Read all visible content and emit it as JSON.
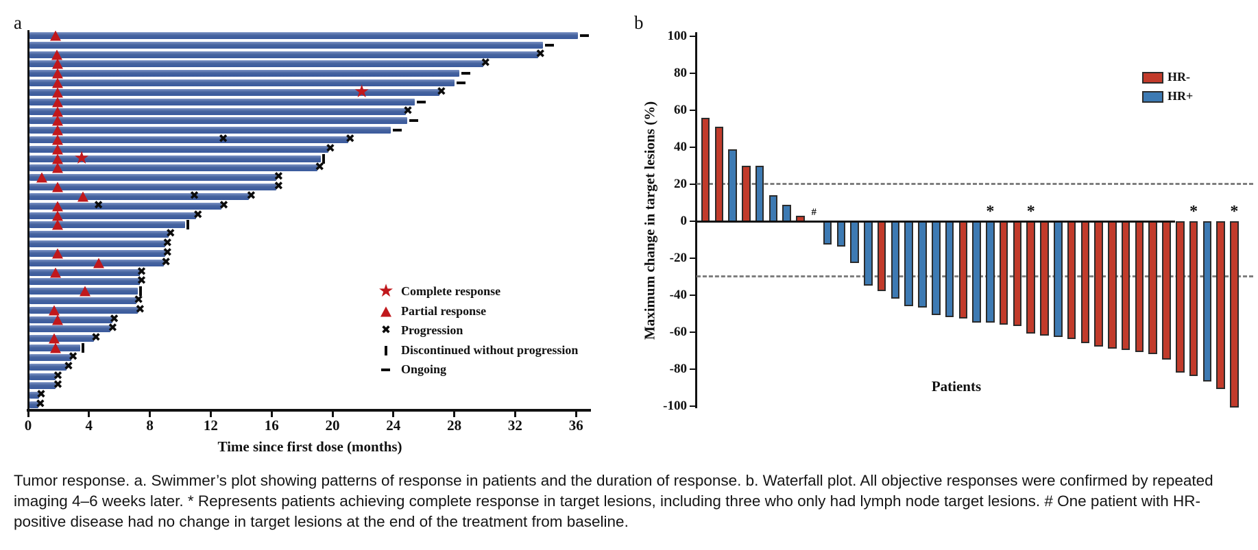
{
  "figure": {
    "panel_a_label": "a",
    "panel_b_label": "b",
    "caption": "Tumor response. a. Swimmer’s plot showing patterns of response in patients and the duration of response. b. Waterfall plot. All objective responses were confirmed by repeated imaging 4–6 weeks later. * Represents patients achieving complete response in target lesions, including three who only had lymph node target lesions. # One patient with HR-positive disease had no change in target lesions at the end of the treatment from baseline."
  },
  "colors": {
    "swimmer_bar": "#3f5fa0",
    "hr_negative": "#c23b2b",
    "hr_positive": "#3d7ab3",
    "marker_red": "#c0181c",
    "marker_black": "#0c0c0c",
    "dashed_reference": "#7e7e7e"
  },
  "chart_data": [
    {
      "type": "bar",
      "subtype": "swimmer",
      "panel": "a",
      "orientation": "horizontal",
      "xlabel": "Time since first dose (months)",
      "xlim": [
        0,
        37
      ],
      "xticks": [
        0,
        4,
        8,
        12,
        16,
        20,
        24,
        28,
        32,
        36
      ],
      "grid": false,
      "legend_position": "center-right",
      "legend": [
        {
          "marker": "star",
          "label": "Complete response"
        },
        {
          "marker": "triangle",
          "label": "Partial response"
        },
        {
          "marker": "x",
          "label": "Progression"
        },
        {
          "marker": "vbar",
          "label": "Discontinued without progression"
        },
        {
          "marker": "dash",
          "label": "Ongoing"
        }
      ],
      "rows": [
        {
          "duration": 36.1,
          "end": "ongoing",
          "markers": [
            {
              "t": "triangle",
              "x": 1.8
            }
          ]
        },
        {
          "duration": 33.8,
          "end": "ongoing",
          "markers": []
        },
        {
          "duration": 33.5,
          "end": "progression",
          "markers": [
            {
              "t": "triangle",
              "x": 1.85
            }
          ]
        },
        {
          "duration": 29.9,
          "end": "progression",
          "markers": [
            {
              "t": "triangle",
              "x": 1.9
            }
          ]
        },
        {
          "duration": 28.3,
          "end": "ongoing",
          "markers": [
            {
              "t": "triangle",
              "x": 1.9
            }
          ]
        },
        {
          "duration": 28.0,
          "end": "ongoing",
          "markers": [
            {
              "t": "triangle",
              "x": 1.9
            }
          ]
        },
        {
          "duration": 27.0,
          "end": "progression",
          "markers": [
            {
              "t": "triangle",
              "x": 1.9
            },
            {
              "t": "star",
              "x": 21.9
            }
          ]
        },
        {
          "duration": 25.4,
          "end": "ongoing",
          "markers": [
            {
              "t": "triangle",
              "x": 1.9
            }
          ]
        },
        {
          "duration": 24.8,
          "end": "progression",
          "markers": [
            {
              "t": "triangle",
              "x": 1.9
            }
          ]
        },
        {
          "duration": 24.9,
          "end": "ongoing",
          "markers": [
            {
              "t": "triangle",
              "x": 1.9
            }
          ]
        },
        {
          "duration": 23.8,
          "end": "ongoing",
          "markers": [
            {
              "t": "triangle",
              "x": 1.9
            }
          ]
        },
        {
          "duration": 21.0,
          "end": "progression",
          "markers": [
            {
              "t": "triangle",
              "x": 1.9
            },
            {
              "t": "x",
              "x": 12.8
            }
          ]
        },
        {
          "duration": 19.7,
          "end": "progression",
          "markers": [
            {
              "t": "triangle",
              "x": 1.9
            }
          ]
        },
        {
          "duration": 19.2,
          "end": "discontinued",
          "markers": [
            {
              "t": "triangle",
              "x": 1.9
            },
            {
              "t": "star",
              "x": 3.5
            }
          ]
        },
        {
          "duration": 19.0,
          "end": "progression",
          "markers": [
            {
              "t": "triangle",
              "x": 1.9
            }
          ]
        },
        {
          "duration": 16.3,
          "end": "progression",
          "markers": [
            {
              "t": "triangle",
              "x": 0.9
            }
          ]
        },
        {
          "duration": 16.3,
          "end": "progression",
          "markers": [
            {
              "t": "triangle",
              "x": 1.9
            }
          ]
        },
        {
          "duration": 14.5,
          "end": "progression",
          "markers": [
            {
              "t": "triangle",
              "x": 3.6
            },
            {
              "t": "x",
              "x": 10.9
            }
          ]
        },
        {
          "duration": 12.7,
          "end": "progression",
          "markers": [
            {
              "t": "triangle",
              "x": 1.9
            },
            {
              "t": "x",
              "x": 4.6
            }
          ]
        },
        {
          "duration": 11.0,
          "end": "progression",
          "markers": [
            {
              "t": "triangle",
              "x": 1.9
            }
          ]
        },
        {
          "duration": 10.3,
          "end": "discontinued",
          "markers": [
            {
              "t": "triangle",
              "x": 1.9
            }
          ]
        },
        {
          "duration": 9.2,
          "end": "progression",
          "markers": []
        },
        {
          "duration": 9.0,
          "end": "progression",
          "markers": []
        },
        {
          "duration": 9.0,
          "end": "progression",
          "markers": [
            {
              "t": "triangle",
              "x": 1.9
            }
          ]
        },
        {
          "duration": 8.9,
          "end": "progression",
          "markers": [
            {
              "t": "triangle",
              "x": 4.6
            }
          ]
        },
        {
          "duration": 7.3,
          "end": "progression",
          "markers": [
            {
              "t": "triangle",
              "x": 1.8
            }
          ]
        },
        {
          "duration": 7.3,
          "end": "progression",
          "markers": []
        },
        {
          "duration": 7.2,
          "end": "discontinued",
          "markers": [
            {
              "t": "triangle",
              "x": 3.7
            }
          ]
        },
        {
          "duration": 7.1,
          "end": "progression",
          "markers": []
        },
        {
          "duration": 7.2,
          "end": "progression",
          "markers": [
            {
              "t": "triangle",
              "x": 1.7
            }
          ]
        },
        {
          "duration": 5.5,
          "end": "progression",
          "markers": [
            {
              "t": "triangle",
              "x": 1.9
            }
          ]
        },
        {
          "duration": 5.4,
          "end": "progression",
          "markers": []
        },
        {
          "duration": 4.3,
          "end": "progression",
          "markers": [
            {
              "t": "triangle",
              "x": 1.7
            }
          ]
        },
        {
          "duration": 3.4,
          "end": "discontinued",
          "markers": [
            {
              "t": "triangle",
              "x": 1.8
            }
          ]
        },
        {
          "duration": 2.8,
          "end": "progression",
          "markers": []
        },
        {
          "duration": 2.5,
          "end": "progression",
          "markers": []
        },
        {
          "duration": 1.8,
          "end": "progression",
          "markers": []
        },
        {
          "duration": 1.8,
          "end": "progression",
          "markers": []
        },
        {
          "duration": 0.7,
          "end": "progression",
          "markers": []
        },
        {
          "duration": 0.65,
          "end": "progression",
          "markers": []
        }
      ]
    },
    {
      "type": "bar",
      "subtype": "waterfall",
      "panel": "b",
      "ylabel": "Maximum change in target lesions (%)",
      "xlabel": "Patients",
      "ylim": [
        -100,
        100
      ],
      "yticks": [
        100,
        80,
        60,
        40,
        20,
        0,
        -20,
        -40,
        -60,
        -80,
        -100
      ],
      "reference_lines": [
        20,
        -30
      ],
      "grid": false,
      "legend_position": "top-right",
      "legend": [
        {
          "label": "HR-",
          "group": "HR-"
        },
        {
          "label": "HR+",
          "group": "HR+"
        }
      ],
      "patients": [
        {
          "value": 56,
          "group": "HR-"
        },
        {
          "value": 51,
          "group": "HR-"
        },
        {
          "value": 39,
          "group": "HR+"
        },
        {
          "value": 30,
          "group": "HR-"
        },
        {
          "value": 30,
          "group": "HR+"
        },
        {
          "value": 14,
          "group": "HR+"
        },
        {
          "value": 9,
          "group": "HR+"
        },
        {
          "value": 3,
          "group": "HR-"
        },
        {
          "value": 0,
          "group": "HR+",
          "annotation": "#"
        },
        {
          "value": -12,
          "group": "HR+"
        },
        {
          "value": -13,
          "group": "HR+"
        },
        {
          "value": -22,
          "group": "HR+"
        },
        {
          "value": -34,
          "group": "HR+"
        },
        {
          "value": -37,
          "group": "HR-"
        },
        {
          "value": -41,
          "group": "HR+"
        },
        {
          "value": -45,
          "group": "HR+"
        },
        {
          "value": -46,
          "group": "HR+"
        },
        {
          "value": -50,
          "group": "HR+"
        },
        {
          "value": -51,
          "group": "HR+"
        },
        {
          "value": -52,
          "group": "HR-"
        },
        {
          "value": -54,
          "group": "HR+"
        },
        {
          "value": -54,
          "group": "HR+",
          "annotation": "*"
        },
        {
          "value": -55,
          "group": "HR-"
        },
        {
          "value": -56,
          "group": "HR-"
        },
        {
          "value": -60,
          "group": "HR-",
          "annotation": "*"
        },
        {
          "value": -61,
          "group": "HR-"
        },
        {
          "value": -62,
          "group": "HR+"
        },
        {
          "value": -63,
          "group": "HR-"
        },
        {
          "value": -65,
          "group": "HR-"
        },
        {
          "value": -67,
          "group": "HR-"
        },
        {
          "value": -68,
          "group": "HR-"
        },
        {
          "value": -69,
          "group": "HR-"
        },
        {
          "value": -70,
          "group": "HR-"
        },
        {
          "value": -71,
          "group": "HR-"
        },
        {
          "value": -74,
          "group": "HR-"
        },
        {
          "value": -81,
          "group": "HR-"
        },
        {
          "value": -83,
          "group": "HR-",
          "annotation": "*"
        },
        {
          "value": -86,
          "group": "HR+"
        },
        {
          "value": -90,
          "group": "HR-"
        },
        {
          "value": -100,
          "group": "HR-",
          "annotation": "*"
        }
      ]
    }
  ]
}
